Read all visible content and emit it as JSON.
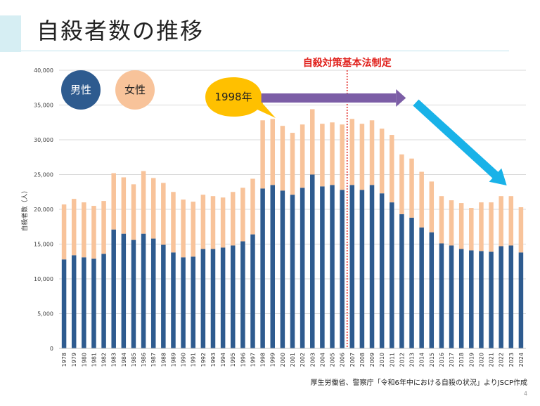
{
  "slide": {
    "title": "自殺者数の推移",
    "source": "厚生労働省、警察庁「令和6年中における自殺の状況」よりJSCP作成",
    "page_number": "4"
  },
  "chart_data": {
    "type": "bar",
    "stacked": true,
    "ylabel": "自殺者数（人）",
    "ylim": [
      0,
      40000
    ],
    "yticks": [
      "0",
      "5,000",
      "10,000",
      "15,000",
      "20,000",
      "25,000",
      "30,000",
      "35,000",
      "40,000"
    ],
    "grid": true,
    "categories": [
      "1978",
      "1979",
      "1980",
      "1981",
      "1982",
      "1983",
      "1984",
      "1985",
      "1986",
      "1987",
      "1988",
      "1989",
      "1990",
      "1991",
      "1992",
      "1993",
      "1994",
      "1995",
      "1996",
      "1997",
      "1998",
      "1999",
      "2000",
      "2001",
      "2002",
      "2003",
      "2004",
      "2005",
      "2006",
      "2007",
      "2008",
      "2009",
      "2010",
      "2011",
      "2012",
      "2013",
      "2014",
      "2015",
      "2016",
      "2017",
      "2018",
      "2019",
      "2020",
      "2021",
      "2022",
      "2023",
      "2024"
    ],
    "series": [
      {
        "name": "男性",
        "color": "#2e5b8f",
        "values": [
          12800,
          13400,
          13100,
          12900,
          13600,
          17100,
          16500,
          15600,
          16500,
          15800,
          14900,
          13800,
          13100,
          13200,
          14300,
          14300,
          14500,
          14800,
          15400,
          16400,
          23000,
          23500,
          22700,
          22100,
          23100,
          25000,
          23300,
          23500,
          22800,
          23500,
          22800,
          23500,
          22300,
          21000,
          19300,
          18800,
          17400,
          16700,
          15100,
          14800,
          14300,
          14100,
          14000,
          13900,
          14700,
          14800,
          13800
        ]
      },
      {
        "name": "女性",
        "color": "#f8c39a",
        "values": [
          7900,
          8100,
          7900,
          7600,
          7600,
          8100,
          8100,
          8000,
          9000,
          8700,
          8900,
          8700,
          8300,
          7900,
          7800,
          7600,
          7200,
          7700,
          7700,
          8000,
          9800,
          9500,
          9300,
          8900,
          9100,
          9400,
          9000,
          9000,
          9400,
          9500,
          9500,
          9300,
          9300,
          9700,
          8600,
          8500,
          8000,
          7300,
          6800,
          6500,
          6600,
          6100,
          7000,
          7100,
          7200,
          7100,
          6500
        ]
      }
    ],
    "legend": [
      {
        "label": "男性",
        "color": "#2e5b8f"
      },
      {
        "label": "女性",
        "color": "#f8c39a"
      }
    ],
    "annotations": {
      "law_label": "自殺対策基本法制定",
      "law_year": "2006",
      "callout_label": "1998年",
      "plateau_arrow": {
        "from": "1998",
        "to": "2011"
      },
      "decline_arrow": {
        "from": "2012",
        "to": "2022"
      }
    }
  }
}
